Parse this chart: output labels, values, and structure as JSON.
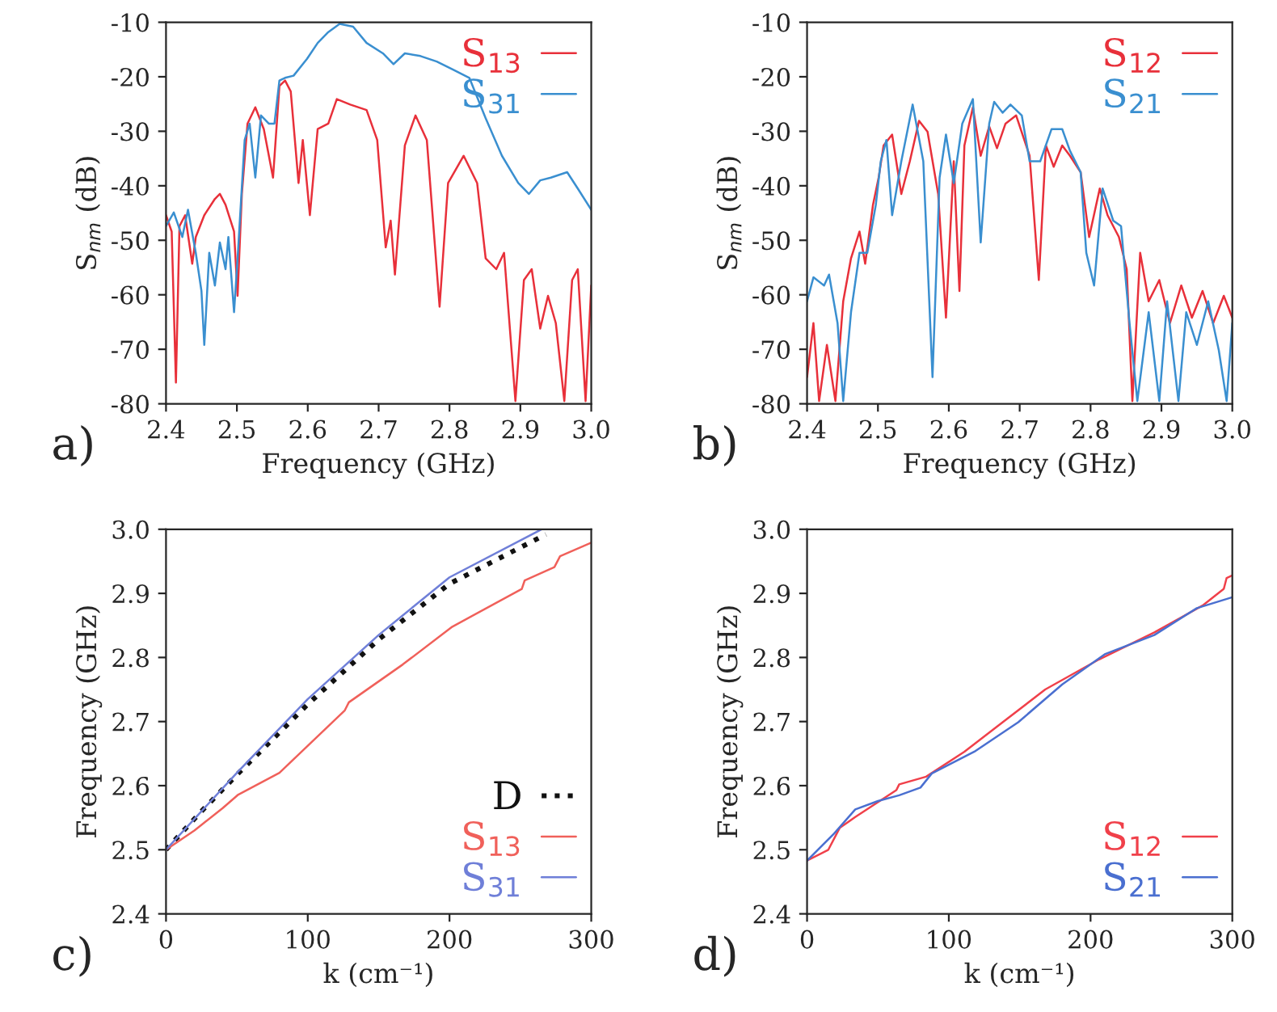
{
  "chart_data": [
    {
      "type": "line",
      "ylabel": "S$_{nm}$ (dB)",
      "xlabel": "Frequency (GHz)",
      "annotations": [
        "a)"
      ],
      "legend": "top right",
      "grid": false,
      "xlim": [
        2.4,
        3.0
      ],
      "xticks": [
        2.4,
        2.5,
        2.6,
        2.7,
        2.8,
        2.9,
        {
          "value": 3.0,
          "label": "3.0"
        }
      ],
      "ylim": [
        -80,
        -10
      ],
      "yticks": [
        -80,
        -70,
        -60,
        -50,
        -40,
        -30,
        -20,
        -10
      ],
      "series": [
        {
          "name": "S$_{13}$",
          "color": "#e8303a",
          "line_style": "solid",
          "x": [
            2.4,
            2.408,
            2.414,
            2.419,
            2.427,
            2.437,
            2.442,
            2.454,
            2.469,
            2.476,
            2.484,
            2.496,
            2.501,
            2.507,
            2.515,
            2.526,
            2.538,
            2.551,
            2.56,
            2.568,
            2.576,
            2.587,
            2.593,
            2.603,
            2.614,
            2.629,
            2.641,
            2.66,
            2.683,
            2.698,
            2.71,
            2.717,
            2.723,
            2.737,
            2.752,
            2.768,
            2.786,
            2.798,
            2.82,
            2.839,
            2.851,
            2.866,
            2.877,
            2.893,
            2.905,
            2.916,
            2.928,
            2.939,
            2.95,
            2.962,
            2.973,
            2.981,
            2.992,
            3.0
          ],
          "values": [
            -45.4,
            -48.4,
            -76.1,
            -47.4,
            -45.4,
            -54.3,
            -49.4,
            -45.4,
            -42.4,
            -41.5,
            -43.5,
            -48.4,
            -60.2,
            -41.5,
            -28.6,
            -25.6,
            -29.6,
            -38.5,
            -21.7,
            -20.7,
            -22.7,
            -39.5,
            -31.6,
            -45.4,
            -29.6,
            -28.6,
            -24.1,
            -25.1,
            -26.1,
            -31.6,
            -51.3,
            -46.4,
            -56.3,
            -32.6,
            -27.1,
            -31.6,
            -62.2,
            -39.5,
            -34.5,
            -39.5,
            -53.3,
            -55.3,
            -52.3,
            -79.5,
            -57.3,
            -55.3,
            -66.2,
            -60.2,
            -65.2,
            -79.5,
            -57.3,
            -55.3,
            -79.5,
            -58.3
          ]
        },
        {
          "name": "S$_{31}$",
          "color": "#3a8fd0",
          "line_style": "solid",
          "x": [
            2.4,
            2.411,
            2.423,
            2.431,
            2.442,
            2.45,
            2.454,
            2.461,
            2.469,
            2.476,
            2.484,
            2.488,
            2.496,
            2.501,
            2.511,
            2.518,
            2.526,
            2.534,
            2.545,
            2.553,
            2.56,
            2.568,
            2.58,
            2.599,
            2.614,
            2.629,
            2.645,
            2.664,
            2.683,
            2.706,
            2.721,
            2.737,
            2.759,
            2.782,
            2.805,
            2.828,
            2.851,
            2.874,
            2.897,
            2.912,
            2.928,
            2.943,
            2.966,
            2.981,
            3.0
          ],
          "values": [
            -47.4,
            -44.9,
            -49.4,
            -44.4,
            -52.3,
            -59.3,
            -69.2,
            -52.3,
            -58.3,
            -50.4,
            -55.3,
            -49.4,
            -63.2,
            -53.3,
            -31.6,
            -28.6,
            -38.5,
            -27.1,
            -28.6,
            -28.6,
            -20.7,
            -20.2,
            -19.8,
            -16.7,
            -13.8,
            -11.8,
            -10.3,
            -10.8,
            -13.8,
            -15.7,
            -17.7,
            -15.7,
            -16.2,
            -17.2,
            -18.7,
            -20.2,
            -27.6,
            -34.5,
            -39.5,
            -41.5,
            -39,
            -38.5,
            -37.5,
            -40.5,
            -44.4
          ]
        }
      ]
    },
    {
      "type": "line",
      "ylabel": "S$_{nm}$ (dB)",
      "xlabel": "Frequency (GHz)",
      "annotations": [
        "b)"
      ],
      "legend": "top right",
      "grid": false,
      "xlim": [
        2.4,
        3.0
      ],
      "xticks": [
        2.4,
        2.5,
        2.6,
        2.7,
        2.8,
        2.9,
        {
          "value": 3.0,
          "label": "3.0"
        }
      ],
      "ylim": [
        -80,
        -10
      ],
      "yticks": [
        -80,
        -70,
        -60,
        -50,
        -40,
        -30,
        -20,
        -10
      ],
      "series": [
        {
          "name": "S$_{12}$",
          "color": "#e8303a",
          "line_style": "solid",
          "x": [
            2.4,
            2.409,
            2.417,
            2.428,
            2.44,
            2.451,
            2.462,
            2.474,
            2.482,
            2.493,
            2.501,
            2.508,
            2.52,
            2.533,
            2.545,
            2.558,
            2.57,
            2.585,
            2.596,
            2.607,
            2.615,
            2.622,
            2.634,
            2.645,
            2.657,
            2.668,
            2.68,
            2.695,
            2.714,
            2.727,
            2.737,
            2.748,
            2.76,
            2.771,
            2.786,
            2.798,
            2.813,
            2.824,
            2.84,
            2.851,
            2.859,
            2.87,
            2.882,
            2.897,
            2.912,
            2.928,
            2.943,
            2.958,
            2.973,
            2.988,
            3.0
          ],
          "values": [
            -75.1,
            -65.2,
            -79.5,
            -69.2,
            -79.5,
            -61.2,
            -53.3,
            -48.4,
            -54.3,
            -43.5,
            -38.5,
            -32.6,
            -30.6,
            -41.5,
            -35.5,
            -28.1,
            -30.1,
            -41.5,
            -64.2,
            -35.5,
            -59.3,
            -32.6,
            -25.6,
            -34.5,
            -29.1,
            -33.1,
            -28.6,
            -27.1,
            -34.5,
            -57.3,
            -32.6,
            -36.5,
            -32.6,
            -34.5,
            -37.5,
            -49.4,
            -40.5,
            -45.4,
            -49.4,
            -55.3,
            -79.5,
            -52.3,
            -61.2,
            -57.3,
            -65.2,
            -58.3,
            -64.2,
            -59.3,
            -65.2,
            -60.2,
            -64.2
          ]
        },
        {
          "name": "S$_{21}$",
          "color": "#3a8fd0",
          "line_style": "solid",
          "x": [
            2.4,
            2.409,
            2.424,
            2.431,
            2.443,
            2.451,
            2.462,
            2.474,
            2.485,
            2.497,
            2.504,
            2.512,
            2.52,
            2.533,
            2.549,
            2.564,
            2.577,
            2.587,
            2.596,
            2.607,
            2.619,
            2.634,
            2.645,
            2.657,
            2.664,
            2.676,
            2.687,
            2.703,
            2.714,
            2.729,
            2.745,
            2.76,
            2.771,
            2.786,
            2.794,
            2.805,
            2.817,
            2.832,
            2.843,
            2.855,
            2.866,
            2.882,
            2.897,
            2.908,
            2.924,
            2.935,
            2.95,
            2.966,
            2.981,
            2.992,
            3.0
          ],
          "values": [
            -61.2,
            -56.8,
            -58.3,
            -56.3,
            -65.2,
            -79.5,
            -63.2,
            -52.3,
            -52.3,
            -43.5,
            -35.5,
            -31.6,
            -45.4,
            -35.5,
            -25.1,
            -35.5,
            -75.1,
            -38.5,
            -30.6,
            -39.5,
            -28.6,
            -24.1,
            -50.4,
            -28.6,
            -24.6,
            -26.6,
            -25.1,
            -27.1,
            -35.5,
            -35.5,
            -29.6,
            -29.6,
            -33.6,
            -37.5,
            -52.3,
            -58.3,
            -40.5,
            -46.4,
            -47.4,
            -65.2,
            -79.5,
            -63.2,
            -79.5,
            -61.2,
            -79.5,
            -63.2,
            -69.2,
            -61.2,
            -70.2,
            -79.5,
            -65.2
          ]
        }
      ]
    },
    {
      "type": "line",
      "ylabel": "Frequency (GHz)",
      "xlabel": "k (cm⁻¹)",
      "annotations": [
        "c)"
      ],
      "legend": "bottom right",
      "grid": false,
      "xlim": [
        0,
        300
      ],
      "xticks": [
        0,
        100,
        200,
        300
      ],
      "ylim": [
        2.4,
        3.0
      ],
      "yticks": [
        2.4,
        2.5,
        2.6,
        2.7,
        2.8,
        2.9,
        {
          "value": 3.0,
          "label": "3.0"
        }
      ],
      "series": [
        {
          "name": "D",
          "color": "#111111",
          "line_style": "dotted",
          "x": [
            0,
            25,
            50,
            100,
            150,
            200,
            268
          ],
          "values": [
            2.5,
            2.56,
            2.617,
            2.727,
            2.828,
            2.915,
            2.992
          ]
        },
        {
          "name": "S$_{13}$",
          "color": "#f0605a",
          "line_style": "solid",
          "x": [
            0,
            20,
            40,
            51,
            80,
            126,
            129,
            167,
            202,
            251,
            253,
            274,
            278,
            300
          ],
          "values": [
            2.5,
            2.53,
            2.565,
            2.586,
            2.62,
            2.717,
            2.73,
            2.789,
            2.848,
            2.907,
            2.92,
            2.941,
            2.958,
            2.979
          ]
        },
        {
          "name": "S$_{31}$",
          "color": "#6f7fd8",
          "line_style": "solid",
          "x": [
            0,
            50,
            100,
            150,
            200,
            265
          ],
          "values": [
            2.5,
            2.62,
            2.735,
            2.835,
            2.925,
            3.0
          ]
        }
      ]
    },
    {
      "type": "line",
      "ylabel": "Frequency (GHz)",
      "xlabel": "k (cm⁻¹)",
      "annotations": [
        "d)"
      ],
      "legend": "bottom right",
      "grid": false,
      "xlim": [
        0,
        300
      ],
      "xticks": [
        0,
        100,
        200,
        300
      ],
      "ylim": [
        2.4,
        3.0
      ],
      "yticks": [
        2.4,
        2.5,
        2.6,
        2.7,
        2.8,
        2.9,
        {
          "value": 3.0,
          "label": "3.0"
        }
      ],
      "series": [
        {
          "name": "S$_{12}$",
          "color": "#f0404a",
          "line_style": "solid",
          "x": [
            0,
            15,
            23,
            34,
            63,
            65,
            84,
            111,
            138,
            168,
            206,
            245,
            279,
            294,
            296,
            300
          ],
          "values": [
            2.483,
            2.5,
            2.534,
            2.551,
            2.593,
            2.602,
            2.614,
            2.653,
            2.699,
            2.75,
            2.797,
            2.839,
            2.881,
            2.907,
            2.924,
            2.928
          ]
        },
        {
          "name": "S$_{21}$",
          "color": "#4a6fd0",
          "line_style": "solid",
          "x": [
            0,
            19,
            34,
            50,
            65,
            80,
            88,
            118,
            149,
            180,
            210,
            245,
            275,
            300
          ],
          "values": [
            2.483,
            2.525,
            2.563,
            2.576,
            2.585,
            2.597,
            2.619,
            2.653,
            2.699,
            2.758,
            2.805,
            2.835,
            2.877,
            2.894
          ]
        }
      ]
    }
  ]
}
